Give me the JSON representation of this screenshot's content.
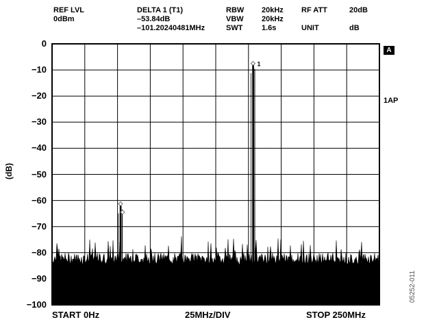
{
  "header": {
    "col1_label": "REF LVL",
    "col1_value": "0dBm",
    "col2_label": "DELTA 1 (T1)",
    "col2_value1": "–53.84dB",
    "col2_value2": "–101.20240481MHz",
    "col3_label1": "RBW",
    "col3_label2": "VBW",
    "col3_label3": "SWT",
    "col4_value1": "20kHz",
    "col4_value2": "20kHz",
    "col4_value3": "1.6s",
    "col5_label1": "RF ATT",
    "col5_label2": "UNIT",
    "col6_value1": "20dB",
    "col6_value2": "dB"
  },
  "side": {
    "trace_badge": "A",
    "trace_mode": "1AP"
  },
  "figure_id": "05252-011",
  "chart_data": {
    "type": "line",
    "ylabel": "(dB)",
    "ylim": [
      -100,
      0
    ],
    "yticks": [
      "0",
      "−10",
      "−20",
      "−30",
      "−40",
      "−50",
      "−60",
      "−70",
      "−80",
      "−90",
      "−100"
    ],
    "xlim": [
      0,
      250
    ],
    "x_start_label": "START 0Hz",
    "x_div_label": "25MHz/DIV",
    "x_stop_label": "STOP 250MHz",
    "grid": true,
    "noise_floor_db": -86,
    "peaks": [
      {
        "x_mhz": 153.5,
        "db": -7.5,
        "marker": "1"
      },
      {
        "x_mhz": 52.3,
        "db": -61.3,
        "marker": ""
      }
    ],
    "color": "#000000"
  }
}
